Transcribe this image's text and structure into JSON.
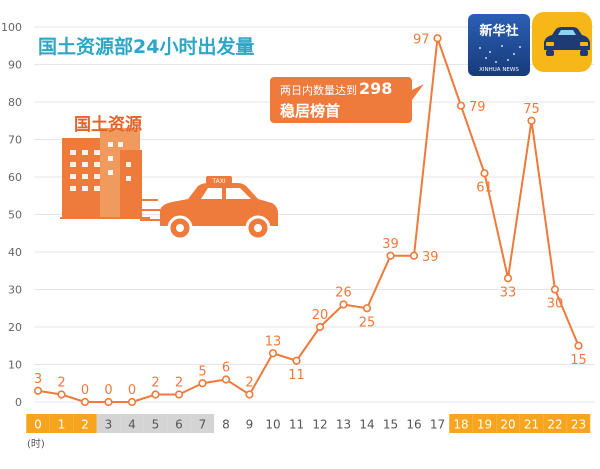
{
  "colors": {
    "accent": "#ee7a3c",
    "title": "#2ea6c6",
    "axis_text": "#666666",
    "grid": "#e6e6e6",
    "highlight_orange": "#f7a51e",
    "gray_band": "#d4d4d4",
    "white_band": "#ffffff",
    "logo_blue": "#1f4a93",
    "logo_yellow": "#f7b718"
  },
  "header": {
    "title": "国土资源部24小时出发量"
  },
  "logos": {
    "xinhua_cn": "新华社",
    "xinhua_en": "XINHUA NEWS",
    "app_icon": "taxi-app-icon"
  },
  "illustration": {
    "building_text": "国土资源",
    "taxi_sign": "TAXI"
  },
  "callout": {
    "line1_prefix": "两日内数量达到",
    "line1_number": "298",
    "line2": "稳居榜首"
  },
  "chart_data": {
    "type": "line",
    "title": "国土资源部24小时出发量",
    "xlabel": "(时)",
    "ylabel": "",
    "ylim": [
      0,
      100
    ],
    "yticks": [
      "0",
      "10",
      "20",
      "30",
      "40",
      "50",
      "60",
      "70",
      "80",
      "90",
      "100"
    ],
    "grid": true,
    "categories": [
      "0",
      "1",
      "2",
      "3",
      "4",
      "5",
      "6",
      "7",
      "8",
      "9",
      "10",
      "11",
      "12",
      "13",
      "14",
      "15",
      "16",
      "17",
      "18",
      "19",
      "20",
      "21",
      "22",
      "23"
    ],
    "values": [
      3,
      2,
      0,
      0,
      0,
      2,
      2,
      5,
      6,
      2,
      13,
      11,
      20,
      26,
      25,
      39,
      39,
      97,
      79,
      61,
      33,
      75,
      30,
      15
    ],
    "label_side": [
      "above",
      "above",
      "above",
      "above",
      "above",
      "above",
      "above",
      "above",
      "above",
      "above",
      "above",
      "below",
      "above",
      "above",
      "below",
      "above",
      "right",
      "left",
      "right",
      "below",
      "below",
      "above",
      "below",
      "below"
    ],
    "band_groups": [
      "orange",
      "orange",
      "orange",
      "gray",
      "gray",
      "gray",
      "gray",
      "gray",
      "white",
      "white",
      "white",
      "white",
      "white",
      "white",
      "white",
      "white",
      "white",
      "white",
      "orange",
      "orange",
      "orange",
      "orange",
      "orange",
      "orange"
    ]
  }
}
